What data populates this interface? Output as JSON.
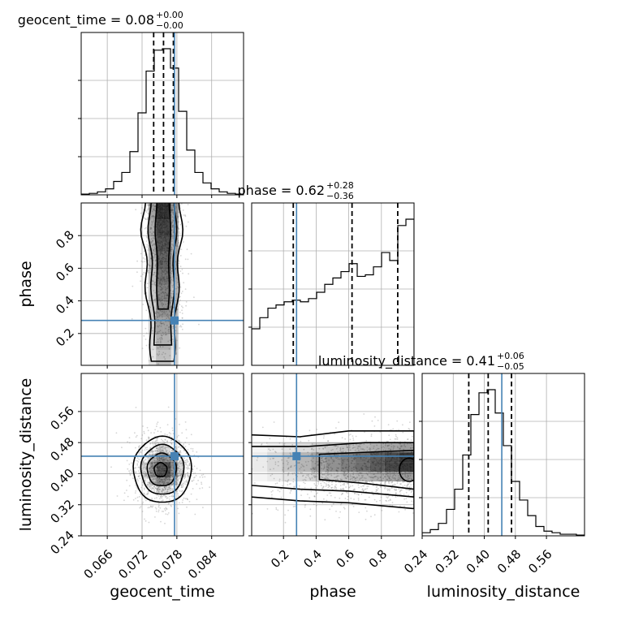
{
  "chart_data": {
    "type": "corner",
    "parameters": [
      "geocent_time",
      "phase",
      "luminosity_distance"
    ],
    "axis_labels": {
      "geocent_time": "geocent_time",
      "phase": "phase",
      "luminosity_distance": "luminosity_distance"
    },
    "titles": [
      {
        "param": "geocent_time",
        "name": "geocent_time",
        "value": "0.08",
        "plus": "+0.00",
        "minus": "−0.00"
      },
      {
        "param": "phase",
        "name": "phase",
        "value": "0.62",
        "plus": "+0.28",
        "minus": "−0.36"
      },
      {
        "param": "luminosity_distance",
        "name": "luminosity_distance",
        "value": "0.41",
        "plus": "+0.06",
        "minus": "−0.05"
      }
    ],
    "ranges": {
      "geocent_time": [
        0.0615,
        0.0895
      ],
      "phase": [
        0.005,
        1.0
      ],
      "luminosity_distance": [
        0.24,
        0.658
      ]
    },
    "ticks": {
      "geocent_time": [
        "0.066",
        "0.072",
        "0.078",
        "0.084"
      ],
      "phase_y": [
        "0.2",
        "0.4",
        "0.6",
        "0.8"
      ],
      "phase_x": [
        "0.2",
        "0.4",
        "0.6",
        "0.8"
      ],
      "luminosity_distance_y": [
        "0.24",
        "0.32",
        "0.40",
        "0.48",
        "0.56"
      ],
      "luminosity_distance_x": [
        "0.24",
        "0.32",
        "0.40",
        "0.48",
        "0.56"
      ]
    },
    "truths": {
      "geocent_time": 0.0776,
      "phase": 0.28,
      "luminosity_distance": 0.445
    },
    "quantiles": {
      "geocent_time": [
        0.074,
        0.0757,
        0.0774
      ],
      "phase": [
        0.26,
        0.62,
        0.9
      ],
      "luminosity_distance": [
        0.36,
        0.41,
        0.47
      ]
    },
    "histograms": {
      "geocent_time": {
        "edges": [
          0.0615,
          0.0629,
          0.0643,
          0.0657,
          0.0671,
          0.0685,
          0.0699,
          0.0713,
          0.0727,
          0.0741,
          0.0755,
          0.0769,
          0.0783,
          0.0797,
          0.0811,
          0.0825,
          0.0839,
          0.0853,
          0.0867,
          0.0881,
          0.0895
        ],
        "counts": [
          0.005,
          0.01,
          0.02,
          0.04,
          0.09,
          0.15,
          0.29,
          0.55,
          0.83,
          0.97,
          0.98,
          0.85,
          0.56,
          0.3,
          0.15,
          0.08,
          0.04,
          0.02,
          0.01,
          0.005
        ]
      },
      "phase": {
        "edges": [
          0.005,
          0.0547,
          0.1045,
          0.1542,
          0.204,
          0.2537,
          0.3035,
          0.3532,
          0.403,
          0.4527,
          0.5025,
          0.5523,
          0.602,
          0.6518,
          0.7015,
          0.7513,
          0.801,
          0.8508,
          0.9005,
          0.9503,
          1.0
        ],
        "counts": [
          0.23,
          0.3,
          0.36,
          0.38,
          0.4,
          0.41,
          0.4,
          0.42,
          0.46,
          0.51,
          0.55,
          0.59,
          0.64,
          0.56,
          0.57,
          0.62,
          0.71,
          0.66,
          0.88,
          0.92
        ]
      },
      "luminosity_distance": {
        "edges": [
          0.24,
          0.2609,
          0.2818,
          0.3027,
          0.3236,
          0.3445,
          0.3654,
          0.3863,
          0.4072,
          0.4281,
          0.449,
          0.4699,
          0.4908,
          0.5117,
          0.5326,
          0.5535,
          0.5744,
          0.5953,
          0.6162,
          0.6371,
          0.658
        ],
        "counts": [
          0.02,
          0.04,
          0.08,
          0.17,
          0.3,
          0.52,
          0.78,
          0.92,
          0.94,
          0.79,
          0.58,
          0.35,
          0.23,
          0.13,
          0.06,
          0.03,
          0.02,
          0.01,
          0.01,
          0.005
        ]
      }
    },
    "grid": true
  }
}
